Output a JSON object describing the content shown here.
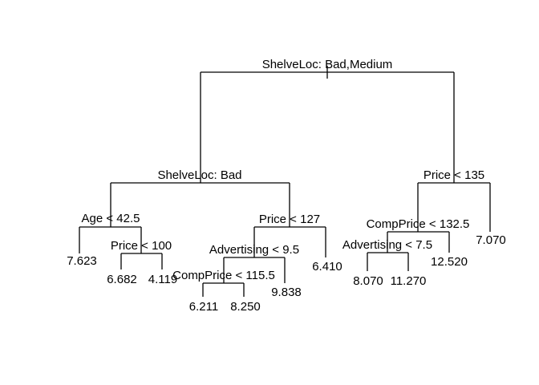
{
  "tree": {
    "split": "ShelveLoc: Bad,Medium",
    "left": {
      "split": "ShelveLoc: Bad",
      "left": {
        "split": "Age < 42.5",
        "left": {
          "leaf": "7.623"
        },
        "right": {
          "split": "Price < 100",
          "left": {
            "leaf": "6.682"
          },
          "right": {
            "leaf": "4.119"
          }
        }
      },
      "right": {
        "split": "Price < 127",
        "left": {
          "split": "Advertising < 9.5",
          "left": {
            "split": "CompPrice < 115.5",
            "left": {
              "leaf": "6.211"
            },
            "right": {
              "leaf": "8.250"
            }
          },
          "right": {
            "leaf": "9.838"
          }
        },
        "right": {
          "leaf": "6.410"
        }
      }
    },
    "right": {
      "split": "Price < 135",
      "left": {
        "split": "CompPrice < 132.5",
        "left": {
          "split": "Advertising < 7.5",
          "left": {
            "leaf": "8.070"
          },
          "right": {
            "leaf": "11.270"
          }
        },
        "right": {
          "leaf": "12.520"
        }
      },
      "right": {
        "leaf": "7.070"
      }
    }
  }
}
